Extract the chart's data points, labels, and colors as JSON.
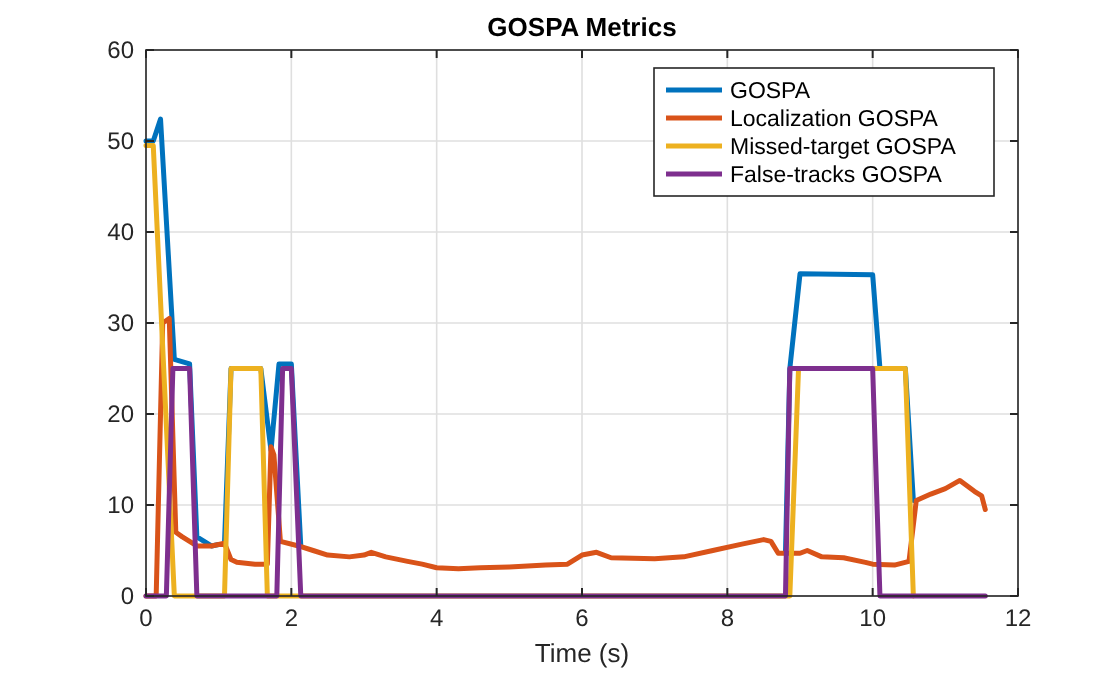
{
  "chart_data": {
    "type": "line",
    "title": "GOSPA Metrics",
    "xlabel": "Time (s)",
    "xlim": [
      0,
      12
    ],
    "xticks": [
      0,
      2,
      4,
      6,
      8,
      10,
      12
    ],
    "ylim": [
      0,
      60
    ],
    "yticks": [
      0,
      10,
      20,
      30,
      40,
      50,
      60
    ],
    "grid": true,
    "legend": "top right",
    "line_style": "solid",
    "marker": "none",
    "series": [
      {
        "name": "GOSPA",
        "color": "#0072bd",
        "x": [
          0,
          0.1,
          0.2,
          0.39,
          0.6,
          0.7,
          0.9,
          1.08,
          1.17,
          1.58,
          1.72,
          1.83,
          2.0,
          2.13,
          5,
          8.8,
          8.86,
          9.0,
          10.0,
          10.1,
          10.45,
          10.56
        ],
        "values": [
          50,
          50,
          52.4,
          26,
          25.5,
          6.5,
          5.5,
          5.8,
          25,
          25,
          16,
          25.5,
          25.5,
          5.5,
          null,
          4.7,
          25,
          35.4,
          35.3,
          25,
          25,
          10.5
        ]
      },
      {
        "name": "Localization GOSPA",
        "color": "#d95319",
        "x": [
          0,
          0.14,
          0.23,
          0.32,
          0.41,
          0.5,
          0.7,
          0.9,
          1.08,
          1.17,
          1.25,
          1.5,
          1.67,
          1.72,
          1.76,
          1.85,
          2.1,
          2.3,
          2.5,
          2.8,
          3.0,
          3.1,
          3.3,
          3.6,
          3.8,
          4.0,
          4.3,
          4.6,
          5.0,
          5.5,
          5.8,
          6.0,
          6.2,
          6.4,
          7.0,
          7.4,
          7.8,
          8.2,
          8.5,
          8.6,
          8.7,
          9.0,
          9.1,
          9.3,
          9.6,
          9.9,
          10.0,
          10.3,
          10.5,
          10.6,
          10.8,
          11.0,
          11.2,
          11.4,
          11.5,
          11.55
        ],
        "values": [
          0,
          0,
          30,
          30.5,
          7,
          6.5,
          5.5,
          5.5,
          5.8,
          4,
          3.7,
          3.5,
          3.5,
          16.4,
          15.5,
          6,
          5.5,
          5,
          4.5,
          4.3,
          4.5,
          4.8,
          4.3,
          3.8,
          3.5,
          3.1,
          3,
          3.1,
          3.2,
          3.4,
          3.5,
          4.5,
          4.8,
          4.2,
          4.1,
          4.3,
          5,
          5.7,
          6.2,
          6,
          4.7,
          4.7,
          5,
          4.3,
          4.2,
          3.7,
          3.5,
          3.4,
          3.8,
          10.5,
          11.2,
          11.8,
          12.7,
          11.5,
          11,
          9.5
        ]
      },
      {
        "name": "Missed-target GOSPA",
        "color": "#edb120",
        "x": [
          0,
          0.1,
          0.39,
          1.08,
          1.17,
          1.58,
          1.67,
          8.86,
          8.98,
          10.45,
          10.56
        ],
        "values": [
          49.5,
          49.5,
          0,
          0,
          25,
          25,
          0,
          0,
          25,
          25,
          0
        ]
      },
      {
        "name": "False-tracks GOSPA",
        "color": "#7e2f8e",
        "x": [
          0,
          0.28,
          0.37,
          0.6,
          0.7,
          1.8,
          1.88,
          2.0,
          2.13,
          8.8,
          8.86,
          10.0,
          10.1,
          11.55
        ],
        "values": [
          0,
          0,
          25,
          25,
          0,
          0,
          25,
          25,
          0,
          0,
          25,
          25,
          0,
          0
        ]
      }
    ]
  }
}
